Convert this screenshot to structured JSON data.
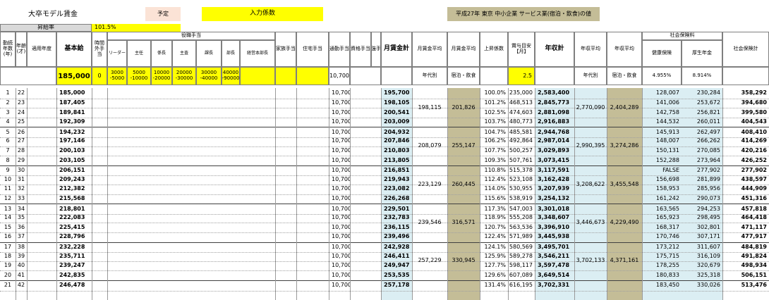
{
  "top": {
    "title": "大卒モデル賃金",
    "plan_label": "予定",
    "input_label": "入力係数",
    "source_label": "平成27年 東京  中小企業 サービス業(宿泊・飲食)の値",
    "raise_label": "昇給率",
    "raise_value": "101.5%"
  },
  "headers": {
    "years_service": "勤続年数(年)",
    "age": "年齢(才)",
    "applied_year": "適用年度",
    "base_pay": "基本給",
    "overtime": "時間外手当",
    "post_allowance": "役職手当",
    "leader": "リーダー",
    "chief": "主任",
    "kakari": "係長",
    "shuji": "主査",
    "kacho": "課長",
    "bucho": "部長",
    "ceo": "経営本部長",
    "family": "家族手当",
    "housing": "住宅手当",
    "commute": "通勤手当",
    "qualification": "資格手当",
    "strength": "強手",
    "monthly_total": "月賃金計",
    "monthly_avg1": "月賃金平均",
    "monthly_avg2": "月賃金平均",
    "raise_factor": "上昇係数",
    "bonus": "賞与目安【月】",
    "annual_total": "年収計",
    "annual_avg1": "年収平均",
    "annual_avg2": "年収平均",
    "social_ins": "社会保険料",
    "health": "健康保険",
    "pension": "厚生年金",
    "social_total": "社会保険計",
    "by_age": "年代別",
    "lodging": "宿泊・飲食"
  },
  "inputs": {
    "base_pay": "185,000",
    "overtime": "0",
    "leader": [
      "3000",
      "-5000"
    ],
    "chief": [
      "5000",
      "-10000"
    ],
    "kakari": [
      "10000",
      "-20000"
    ],
    "shuji": [
      "20000",
      "-30000"
    ],
    "kacho": [
      "30000",
      "-40000"
    ],
    "bucho": [
      "40000",
      "-90000"
    ],
    "commute": "10,700",
    "bonus": "2.5",
    "health_rate": "4.955%",
    "pension_rate": "8.914%"
  },
  "rows": [
    {
      "n": "1",
      "age": "22",
      "base": "185,000",
      "commute": "10,700",
      "month": "195,700",
      "rf": "100.0%",
      "bonus": "235,000",
      "annual": "2,583,400",
      "health": "128,007",
      "pension": "230,284",
      "social": "358,292"
    },
    {
      "n": "2",
      "age": "23",
      "base": "187,405",
      "commute": "10,700",
      "month": "198,105",
      "rf": "101.2%",
      "bonus": "468,513",
      "annual": "2,845,773",
      "health": "141,006",
      "pension": "253,672",
      "social": "394,680"
    },
    {
      "n": "3",
      "age": "24",
      "base": "189,841",
      "commute": "10,700",
      "month": "200,541",
      "rf": "102.5%",
      "bonus": "474,603",
      "annual": "2,881,098",
      "health": "142,758",
      "pension": "256,821",
      "social": "399,580"
    },
    {
      "n": "4",
      "age": "25",
      "base": "192,309",
      "commute": "10,700",
      "month": "203,009",
      "rf": "103.7%",
      "bonus": "480,773",
      "annual": "2,916,883",
      "health": "144,532",
      "pension": "260,011",
      "social": "404,543"
    },
    {
      "n": "5",
      "age": "26",
      "base": "194,232",
      "commute": "10,700",
      "month": "204,932",
      "rf": "104.7%",
      "bonus": "485,581",
      "annual": "2,944,768",
      "health": "145,913",
      "pension": "262,497",
      "social": "408,410"
    },
    {
      "n": "6",
      "age": "27",
      "base": "197,146",
      "commute": "10,700",
      "month": "207,846",
      "rf": "106.2%",
      "bonus": "492,864",
      "annual": "2,987,014",
      "health": "148,007",
      "pension": "266,262",
      "social": "414,269"
    },
    {
      "n": "7",
      "age": "28",
      "base": "200,103",
      "commute": "10,700",
      "month": "210,803",
      "rf": "107.7%",
      "bonus": "500,257",
      "annual": "3,029,893",
      "health": "150,131",
      "pension": "270,085",
      "social": "420,216"
    },
    {
      "n": "8",
      "age": "29",
      "base": "203,105",
      "commute": "10,700",
      "month": "213,805",
      "rf": "109.3%",
      "bonus": "507,761",
      "annual": "3,073,415",
      "health": "152,288",
      "pension": "273,964",
      "social": "426,252"
    },
    {
      "n": "9",
      "age": "30",
      "base": "206,151",
      "commute": "10,700",
      "month": "216,851",
      "rf": "110.8%",
      "bonus": "515,378",
      "annual": "3,117,591",
      "health": "FALSE",
      "pension": "277,902",
      "social": "277,902"
    },
    {
      "n": "10",
      "age": "31",
      "base": "209,243",
      "commute": "10,700",
      "month": "219,943",
      "rf": "112.4%",
      "bonus": "523,108",
      "annual": "3,162,428",
      "health": "156,698",
      "pension": "281,899",
      "social": "438,597"
    },
    {
      "n": "11",
      "age": "32",
      "base": "212,382",
      "commute": "10,700",
      "month": "223,082",
      "rf": "114.0%",
      "bonus": "530,955",
      "annual": "3,207,939",
      "health": "158,953",
      "pension": "285,956",
      "social": "444,909"
    },
    {
      "n": "12",
      "age": "33",
      "base": "215,568",
      "commute": "10,700",
      "month": "226,268",
      "rf": "115.6%",
      "bonus": "538,919",
      "annual": "3,254,132",
      "health": "161,242",
      "pension": "290,073",
      "social": "451,316"
    },
    {
      "n": "13",
      "age": "34",
      "base": "218,801",
      "commute": "10,700",
      "month": "229,501",
      "rf": "117.3%",
      "bonus": "547,003",
      "annual": "3,301,018",
      "health": "163,565",
      "pension": "294,253",
      "social": "457,818"
    },
    {
      "n": "14",
      "age": "35",
      "base": "222,083",
      "commute": "10,700",
      "month": "232,783",
      "rf": "118.9%",
      "bonus": "555,208",
      "annual": "3,348,607",
      "health": "165,923",
      "pension": "298,495",
      "social": "464,418"
    },
    {
      "n": "15",
      "age": "36",
      "base": "225,415",
      "commute": "10,700",
      "month": "236,115",
      "rf": "120.7%",
      "bonus": "563,536",
      "annual": "3,396,910",
      "health": "168,317",
      "pension": "302,801",
      "social": "471,117"
    },
    {
      "n": "16",
      "age": "37",
      "base": "228,796",
      "commute": "10,700",
      "month": "239,496",
      "rf": "122.4%",
      "bonus": "571,989",
      "annual": "3,445,938",
      "health": "170,746",
      "pension": "307,171",
      "social": "477,917"
    },
    {
      "n": "17",
      "age": "38",
      "base": "232,228",
      "commute": "10,700",
      "month": "242,928",
      "rf": "124.1%",
      "bonus": "580,569",
      "annual": "3,495,701",
      "health": "173,212",
      "pension": "311,607",
      "social": "484,819"
    },
    {
      "n": "18",
      "age": "39",
      "base": "235,711",
      "commute": "10,700",
      "month": "246,411",
      "rf": "125.9%",
      "bonus": "589,278",
      "annual": "3,546,211",
      "health": "175,715",
      "pension": "316,109",
      "social": "491,824"
    },
    {
      "n": "19",
      "age": "40",
      "base": "239,247",
      "commute": "10,700",
      "month": "249,947",
      "rf": "127.7%",
      "bonus": "598,117",
      "annual": "3,597,478",
      "health": "178,255",
      "pension": "320,679",
      "social": "498,934"
    },
    {
      "n": "20",
      "age": "41",
      "base": "242,835",
      "commute": "10,700",
      "month": "253,535",
      "rf": "129.6%",
      "bonus": "607,089",
      "annual": "3,649,514",
      "health": "180,833",
      "pension": "325,318",
      "social": "506,151"
    },
    {
      "n": "21",
      "age": "42",
      "base": "246,478",
      "commute": "10,700",
      "month": "257,178",
      "rf": "131.4%",
      "bonus": "616,195",
      "annual": "3,702,331",
      "health": "183,450",
      "pension": "330,026",
      "social": "513,476"
    }
  ],
  "groups": [
    {
      "avg1": "198,115",
      "avg2": "201,826",
      "annual_avg1": "2,770,090",
      "annual_avg2": "2,404,289"
    },
    {
      "avg1": "208,079",
      "avg2": "255,147",
      "annual_avg1": "2,990,395",
      "annual_avg2": "3,274,286"
    },
    {
      "avg1": "223,129",
      "avg2": "260,445",
      "annual_avg1": "3,208,622",
      "annual_avg2": "3,455,548"
    },
    {
      "avg1": "239,546",
      "avg2": "316,571",
      "annual_avg1": "3,446,673",
      "annual_avg2": "4,229,490"
    },
    {
      "avg1": "257,229",
      "avg2": "330,945",
      "annual_avg1": "3,702,133",
      "annual_avg2": "4,371,161"
    }
  ]
}
